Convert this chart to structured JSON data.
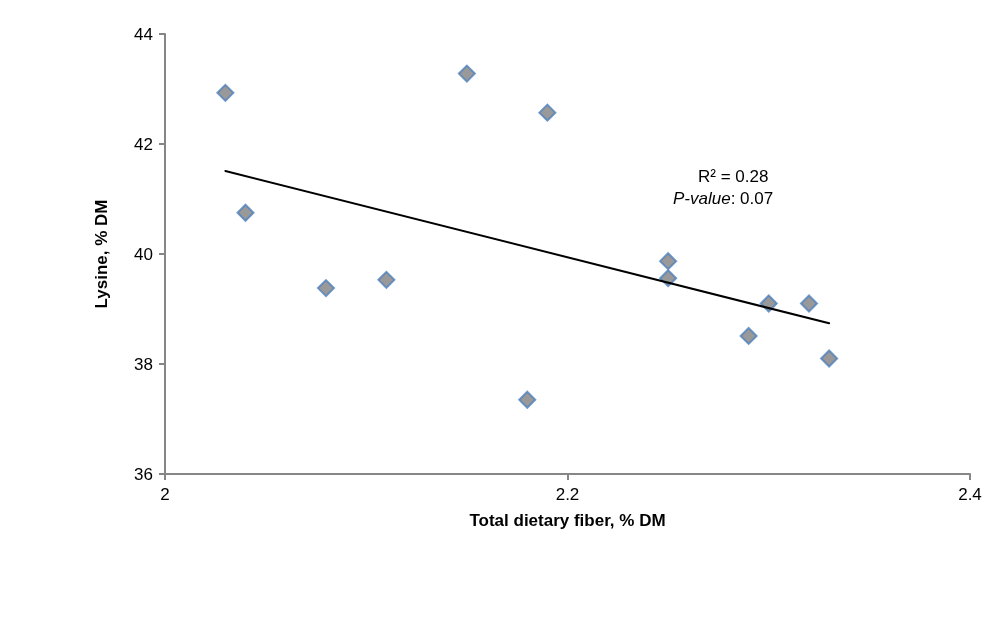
{
  "chart_data": {
    "type": "scatter",
    "xlabel": "Total dietary fiber, % DM",
    "ylabel": "Lysine, % DM",
    "xlim": [
      2,
      2.4
    ],
    "xticks": [
      2,
      2.2,
      2.4
    ],
    "ylim": [
      36,
      44
    ],
    "yticks": [
      36,
      38,
      40,
      42,
      44
    ],
    "grid": false,
    "marker": "diamond",
    "series": [
      {
        "color": "#7f7f7f",
        "x": [
          2.03,
          2.04,
          2.08,
          2.11,
          2.15,
          2.19,
          2.18,
          2.25,
          2.25,
          2.29,
          2.3,
          2.32,
          2.33
        ],
        "values": [
          42.93,
          40.75,
          39.38,
          39.53,
          43.28,
          42.57,
          37.35,
          39.87,
          39.56,
          38.51,
          39.1,
          39.1,
          38.1
        ]
      },
      {
        "type": "line",
        "color": "#000000",
        "x": [
          2.03,
          2.33
        ],
        "values": [
          41.51,
          38.74
        ],
        "marker": "none"
      }
    ],
    "annotations": [
      "R² = 0.28",
      "P-value: 0.07"
    ]
  }
}
